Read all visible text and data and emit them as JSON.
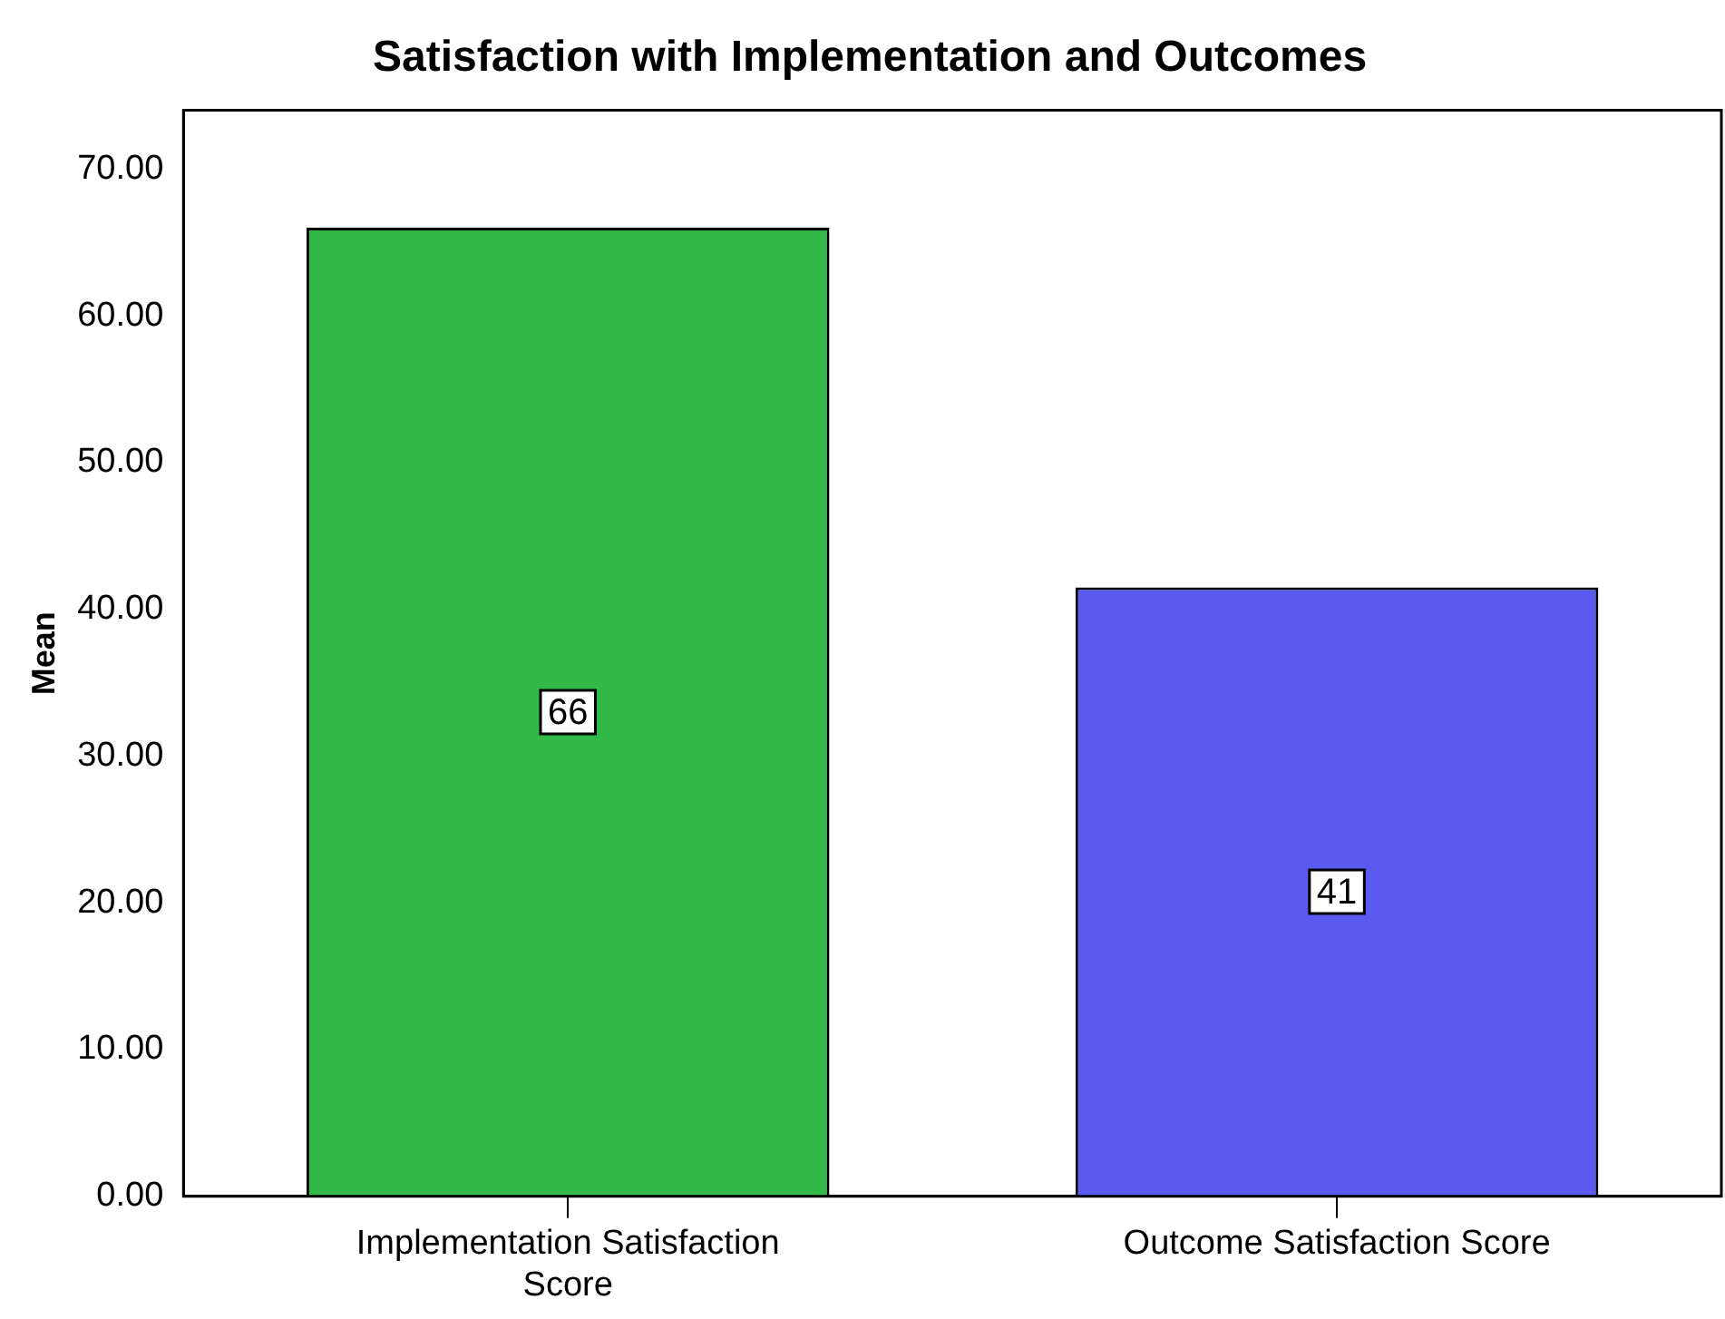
{
  "chart_data": {
    "type": "bar",
    "title": "Satisfaction with Implementation and Outcomes",
    "ylabel": "Mean",
    "categories": [
      "Implementation Satisfaction Score",
      "Outcome Satisfaction Score"
    ],
    "values": [
      66,
      41.5
    ],
    "value_labels": [
      "66",
      "41"
    ],
    "colors": [
      "#33b84a",
      "#5a5af0"
    ],
    "ylim": [
      0,
      74
    ],
    "yticks": [
      {
        "value": 0,
        "label": "0.00"
      },
      {
        "value": 10,
        "label": "10.00"
      },
      {
        "value": 20,
        "label": "20.00"
      },
      {
        "value": 30,
        "label": "30.00"
      },
      {
        "value": 40,
        "label": "40.00"
      },
      {
        "value": 50,
        "label": "50.00"
      },
      {
        "value": 60,
        "label": "60.00"
      },
      {
        "value": 70,
        "label": "70.00"
      }
    ],
    "grid": false,
    "legend": false
  }
}
